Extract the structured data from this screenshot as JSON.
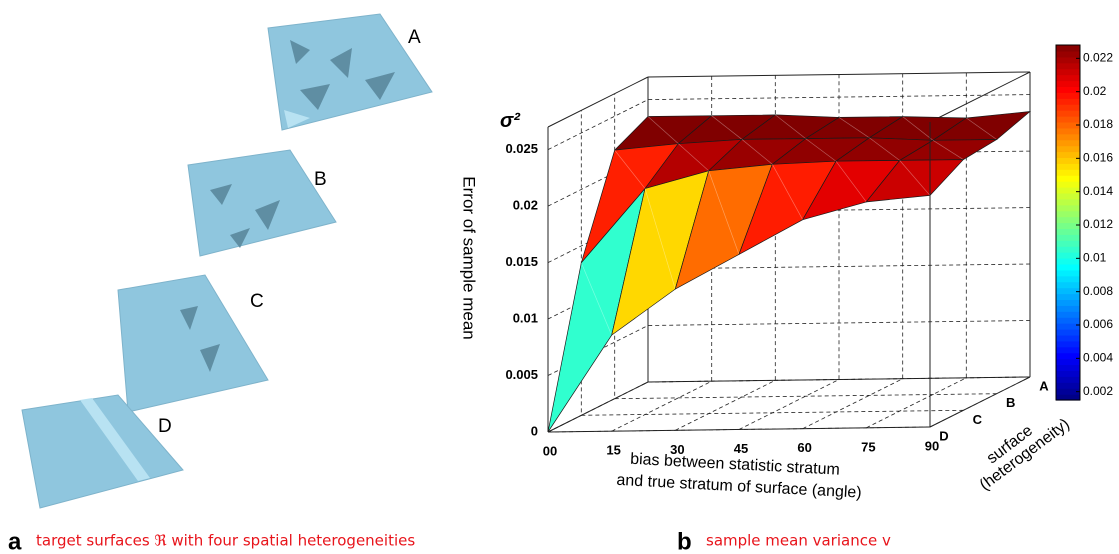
{
  "panel_a": {
    "label": "a",
    "caption": "target surfaces ℜ with four spatial heterogeneities",
    "surfaces": [
      "A",
      "B",
      "C",
      "D"
    ]
  },
  "chart_data": {
    "type": "surface",
    "panel_label": "b",
    "caption": "sample mean variance v",
    "z_symbol": "σ²",
    "zlabel": "Error of sample mean",
    "xlabel": [
      "bias between statistic stratum",
      "and true stratum of surface (angle)"
    ],
    "ylabel": [
      "surface",
      "(heterogeneity)"
    ],
    "x": [
      0,
      15,
      30,
      45,
      60,
      75,
      90
    ],
    "xlim": [
      0,
      90
    ],
    "xticks": [
      {
        "value": 0,
        "label": "00"
      },
      15,
      30,
      45,
      60,
      75,
      90
    ],
    "categories": [
      "A",
      "B",
      "C",
      "D"
    ],
    "series": [
      {
        "name": "A",
        "values": [
          0.0235,
          0.0235,
          0.0235,
          0.0232,
          0.0232,
          0.023,
          0.0235
        ]
      },
      {
        "name": "B",
        "values": [
          0.022,
          0.0225,
          0.0228,
          0.0228,
          0.0228,
          0.0225,
          0.0225
        ]
      },
      {
        "name": "C",
        "values": [
          0.0135,
          0.02,
          0.0215,
          0.022,
          0.0222,
          0.0222,
          0.0222
        ]
      },
      {
        "name": "D",
        "values": [
          0,
          0.0085,
          0.0125,
          0.0155,
          0.0185,
          0.02,
          0.0205
        ]
      }
    ],
    "zlim": [
      0,
      0.027
    ],
    "zticks": [
      0,
      0.005,
      0.01,
      0.015,
      0.02,
      0.025
    ],
    "grid": true,
    "colormap": "jet",
    "clim": [
      0.0015,
      0.0228
    ],
    "cticks": [
      0.002,
      0.004,
      0.006,
      0.008,
      0.01,
      0.012,
      0.014,
      0.016,
      0.018,
      0.02,
      0.022
    ]
  }
}
